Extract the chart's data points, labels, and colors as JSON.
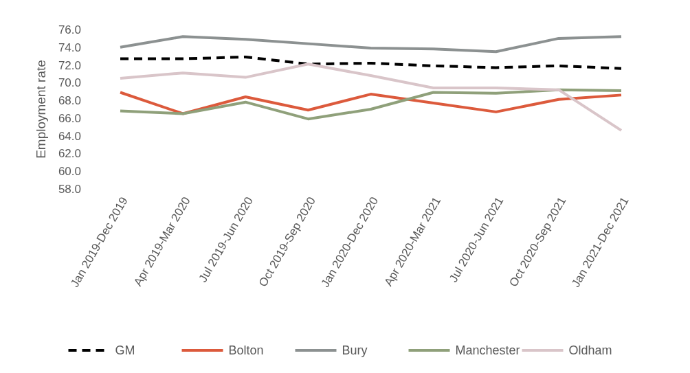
{
  "chart_data": {
    "type": "line",
    "ylabel": "Employment rate",
    "categories": [
      "Jan 2019-Dec 2019",
      "Apr 2019-Mar 2020",
      "Jul 2019-Jun 2020",
      "Oct 2019-Sep 2020",
      "Jan 2020-Dec 2020",
      "Apr 2020-Mar 2021",
      "Jul 2020-Jun 2021",
      "Oct 2020-Sep 2021",
      "Jan 2021-Dec 2021"
    ],
    "series": [
      {
        "name": "GM",
        "color": "#000000",
        "line_style": "dashed",
        "values": [
          72.7,
          72.7,
          72.9,
          72.1,
          72.2,
          71.9,
          71.7,
          71.9,
          71.6
        ]
      },
      {
        "name": "Bolton",
        "color": "#dc5a3c",
        "line_style": "solid",
        "values": [
          68.9,
          66.5,
          68.4,
          66.9,
          68.7,
          67.7,
          66.7,
          68.1,
          68.6
        ]
      },
      {
        "name": "Bury",
        "color": "#8c9191",
        "line_style": "solid",
        "values": [
          74.0,
          75.2,
          74.9,
          74.4,
          73.9,
          73.8,
          73.5,
          75.0,
          75.2
        ]
      },
      {
        "name": "Manchester",
        "color": "#8fa07a",
        "line_style": "solid",
        "values": [
          66.8,
          66.5,
          67.8,
          65.9,
          67.0,
          68.9,
          68.8,
          69.2,
          69.1
        ]
      },
      {
        "name": "Oldham",
        "color": "#d9c5c9",
        "line_style": "solid",
        "values": [
          70.5,
          71.1,
          70.6,
          72.1,
          70.8,
          69.4,
          69.4,
          69.2,
          64.6
        ]
      }
    ],
    "ylim": [
      58,
      76
    ],
    "yticks": [
      {
        "value": 58,
        "label": "58.0"
      },
      {
        "value": 60,
        "label": "60.0"
      },
      {
        "value": 62,
        "label": "62.0"
      },
      {
        "value": 64,
        "label": "64.0"
      },
      {
        "value": 66,
        "label": "66.0"
      },
      {
        "value": 68,
        "label": "68.0"
      },
      {
        "value": 70,
        "label": "70.0"
      },
      {
        "value": 72,
        "label": "72.0"
      },
      {
        "value": 74,
        "label": "74.0"
      },
      {
        "value": 76,
        "label": "76.0"
      }
    ],
    "grid": false,
    "legend": "bottom",
    "marker": "none"
  }
}
